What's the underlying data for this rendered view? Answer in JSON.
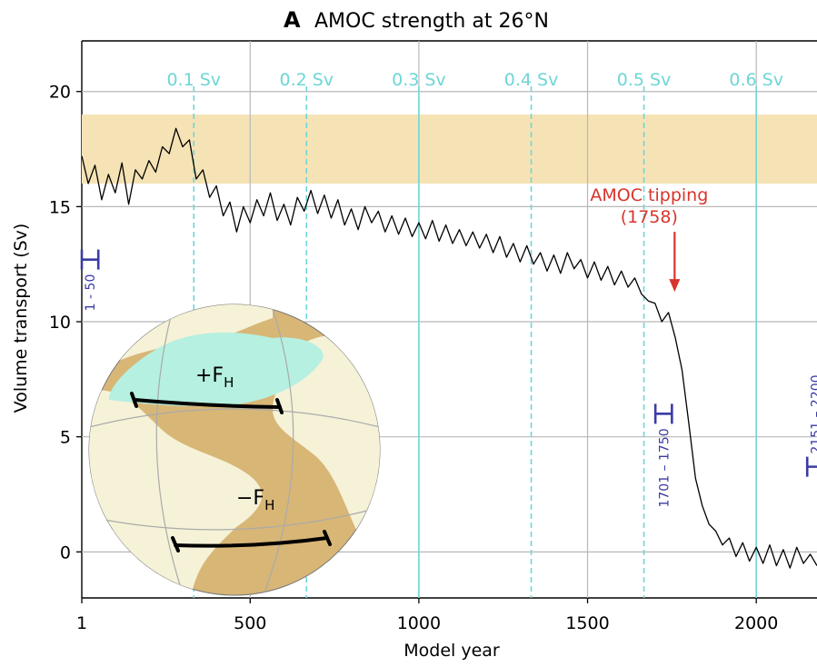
{
  "chart_data": {
    "type": "line",
    "panel_label": "A",
    "title": "AMOC strength at 26°N",
    "xlabel": "Model year",
    "ylabel": "Volume transport (Sv)",
    "x": [
      1,
      20,
      40,
      60,
      80,
      100,
      120,
      140,
      160,
      180,
      200,
      220,
      240,
      260,
      280,
      300,
      320,
      340,
      360,
      380,
      400,
      420,
      440,
      460,
      480,
      500,
      520,
      540,
      560,
      580,
      600,
      620,
      640,
      660,
      680,
      700,
      720,
      740,
      760,
      780,
      800,
      820,
      840,
      860,
      880,
      900,
      920,
      940,
      960,
      980,
      1000,
      1020,
      1040,
      1060,
      1080,
      1100,
      1120,
      1140,
      1160,
      1180,
      1200,
      1220,
      1240,
      1260,
      1280,
      1300,
      1320,
      1340,
      1360,
      1380,
      1400,
      1420,
      1440,
      1460,
      1480,
      1500,
      1520,
      1540,
      1560,
      1580,
      1600,
      1620,
      1640,
      1660,
      1680,
      1700,
      1720,
      1740,
      1760,
      1780,
      1800,
      1820,
      1840,
      1860,
      1880,
      1900,
      1920,
      1940,
      1960,
      1980,
      2000,
      2020,
      2040,
      2060,
      2080,
      2100,
      2120,
      2140,
      2160,
      2180
    ],
    "series": [
      {
        "color": "#000000",
        "values": [
          17.2,
          16.0,
          16.8,
          15.3,
          16.4,
          15.6,
          16.9,
          15.1,
          16.6,
          16.2,
          17.0,
          16.5,
          17.6,
          17.3,
          18.4,
          17.6,
          17.9,
          16.2,
          16.6,
          15.4,
          15.9,
          14.6,
          15.2,
          13.9,
          15.0,
          14.3,
          15.3,
          14.6,
          15.6,
          14.4,
          15.1,
          14.2,
          15.4,
          14.8,
          15.7,
          14.7,
          15.5,
          14.5,
          15.3,
          14.2,
          14.9,
          14.0,
          15.0,
          14.3,
          14.8,
          13.9,
          14.6,
          13.8,
          14.5,
          13.7,
          14.3,
          13.6,
          14.4,
          13.5,
          14.2,
          13.4,
          14.0,
          13.3,
          13.9,
          13.2,
          13.8,
          13.0,
          13.7,
          12.8,
          13.4,
          12.6,
          13.3,
          12.5,
          13.0,
          12.2,
          12.9,
          12.1,
          13.0,
          12.3,
          12.7,
          11.9,
          12.6,
          11.8,
          12.4,
          11.6,
          12.2,
          11.5,
          11.9,
          11.2,
          10.9,
          10.8,
          10.0,
          10.4,
          9.3,
          7.9,
          5.6,
          3.2,
          2.0,
          1.2,
          0.9,
          0.3,
          0.6,
          -0.2,
          0.4,
          -0.4,
          0.2,
          -0.5,
          0.3,
          -0.6,
          0.1,
          -0.7,
          0.2,
          -0.5,
          -0.1,
          -0.6
        ]
      }
    ],
    "xlim": [
      1,
      2180
    ],
    "ylim": [
      -2,
      22.2
    ],
    "xticks": [
      1,
      500,
      1000,
      1500,
      2000
    ],
    "yticks": [
      0,
      5,
      10,
      15,
      20
    ],
    "grid": true,
    "band": {
      "ymin": 16,
      "ymax": 19,
      "color": "#f5e3b5"
    },
    "forcing_lines": [
      {
        "x": 333,
        "label": "0.1 Sv",
        "dashed": true
      },
      {
        "x": 667,
        "label": "0.2 Sv",
        "dashed": true
      },
      {
        "x": 1000,
        "label": "0.3 Sv",
        "dashed": false
      },
      {
        "x": 1333,
        "label": "0.4 Sv",
        "dashed": true
      },
      {
        "x": 1667,
        "label": "0.5 Sv",
        "dashed": true
      },
      {
        "x": 2000,
        "label": "0.6 Sv",
        "dashed": false
      }
    ],
    "forcing_color": "#6ed6d6",
    "tipping": {
      "text": "AMOC tipping",
      "x": 1758,
      "label": "(1758)",
      "y": 11.3,
      "color": "#d9342b"
    },
    "windows": [
      {
        "label": "1 - 50",
        "x": [
          1,
          50
        ],
        "y": 12.7
      },
      {
        "label": "1701 – 1750",
        "x": [
          1701,
          1750
        ],
        "y": 6.0
      },
      {
        "label": "2151 – 2200",
        "x": [
          2151,
          2200
        ],
        "y": 3.7
      }
    ],
    "window_color": "#3b3ba6",
    "inset": {
      "north": {
        "text": "+F",
        "sub": "H"
      },
      "south": {
        "text": "−F",
        "sub": "H"
      }
    }
  }
}
